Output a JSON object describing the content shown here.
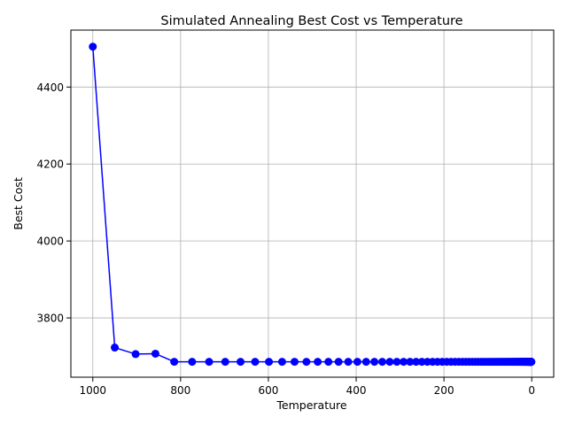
{
  "chart_data": {
    "type": "line",
    "title": "Simulated Annealing Best Cost vs Temperature",
    "xlabel": "Temperature",
    "ylabel": "Best Cost",
    "xlim": [
      1050,
      -50
    ],
    "ylim": [
      3646,
      4548
    ],
    "x_ticks": [
      1000,
      800,
      600,
      400,
      200,
      0
    ],
    "y_ticks": [
      3800,
      4000,
      4200,
      4400
    ],
    "x_tick_labels": [
      "1000",
      "800",
      "600",
      "400",
      "200",
      "0"
    ],
    "y_tick_labels": [
      "3800",
      "4000",
      "4200",
      "4400"
    ],
    "x_inverted": true,
    "grid": true,
    "series": [
      {
        "color": "#0000ff",
        "marker": "circle",
        "cooling_rate": 0.95,
        "start_temperature": 1000,
        "end_temperature": 1,
        "values": [
          4505,
          3723,
          3706,
          3707,
          3686
        ],
        "final_value": 3686
      }
    ]
  }
}
